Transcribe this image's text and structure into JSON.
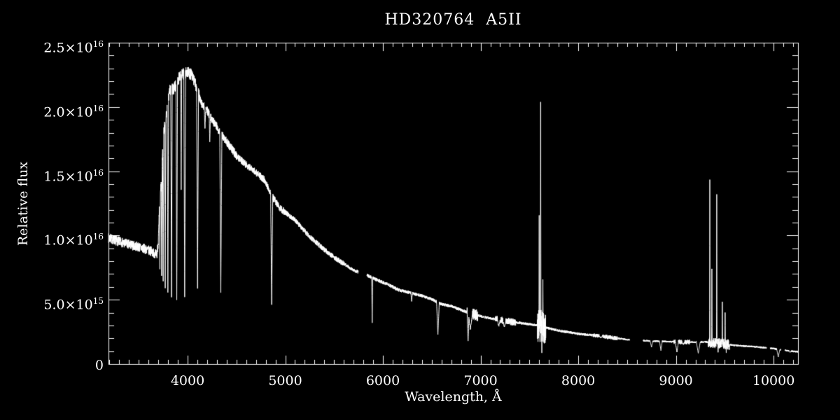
{
  "chart_data": {
    "type": "line",
    "title": "HD320764  A5II",
    "xlabel": "Wavelength, Å",
    "ylabel": "Relative flux",
    "xlim": [
      3190,
      10250
    ],
    "ylim_e15": [
      0,
      25
    ],
    "grid": "off",
    "legend": "none",
    "colors": {
      "background": "#000000",
      "foreground": "#ffffff",
      "line": "#ffffff"
    },
    "x_axis": {
      "major_values": [
        4000,
        5000,
        6000,
        7000,
        8000,
        9000,
        10000
      ],
      "labels": [
        "4000",
        "5000",
        "6000",
        "7000",
        "8000",
        "9000",
        "10000"
      ],
      "minor_step": 100
    },
    "y_axis": {
      "major_values_e15": [
        0,
        5,
        10,
        15,
        20,
        25
      ],
      "labels": [
        {
          "text": "0",
          "sup": ""
        },
        {
          "text": "5.0×10",
          "sup": "15"
        },
        {
          "text": "1.0×10",
          "sup": "16"
        },
        {
          "text": "1.5×10",
          "sup": "16"
        },
        {
          "text": "2.0×10",
          "sup": "16"
        },
        {
          "text": "2.5×10",
          "sup": "16"
        }
      ],
      "minor_step_e15": 1
    },
    "flux_unit": "1e15 relative flux units",
    "continuum_e15": [
      [
        3190,
        9.8
      ],
      [
        3350,
        9.4
      ],
      [
        3500,
        9.1
      ],
      [
        3620,
        8.8
      ],
      [
        3685,
        8.5
      ],
      [
        3700,
        9.5
      ],
      [
        3713,
        12.3
      ],
      [
        3730,
        14.0
      ],
      [
        3750,
        17.8
      ],
      [
        3780,
        19.2
      ],
      [
        3815,
        21.3
      ],
      [
        3860,
        21.4
      ],
      [
        3925,
        22.5
      ],
      [
        4000,
        22.7
      ],
      [
        4040,
        22.5
      ],
      [
        4090,
        21.6
      ],
      [
        4140,
        20.3
      ],
      [
        4200,
        19.7
      ],
      [
        4260,
        18.9
      ],
      [
        4320,
        18.2
      ],
      [
        4400,
        17.3
      ],
      [
        4500,
        16.2
      ],
      [
        4600,
        15.5
      ],
      [
        4700,
        14.9
      ],
      [
        4790,
        14.3
      ],
      [
        4870,
        13.0
      ],
      [
        4950,
        12.1
      ],
      [
        5050,
        11.5
      ],
      [
        5100,
        11.2
      ],
      [
        5250,
        9.9
      ],
      [
        5400,
        8.9
      ],
      [
        5500,
        8.3
      ],
      [
        5600,
        7.8
      ],
      [
        5700,
        7.3
      ],
      [
        5840,
        6.9
      ],
      [
        5950,
        6.5
      ],
      [
        6050,
        6.2
      ],
      [
        6150,
        5.8
      ],
      [
        6300,
        5.5
      ],
      [
        6400,
        5.3
      ],
      [
        6500,
        5.05
      ],
      [
        6600,
        4.65
      ],
      [
        6700,
        4.5
      ],
      [
        6800,
        4.2
      ],
      [
        6960,
        3.8
      ],
      [
        7100,
        3.55
      ],
      [
        7300,
        3.3
      ],
      [
        7500,
        3.1
      ],
      [
        7590,
        3.0
      ],
      [
        7660,
        2.85
      ],
      [
        7800,
        2.6
      ],
      [
        8000,
        2.35
      ],
      [
        8200,
        2.2
      ],
      [
        8400,
        2.0
      ],
      [
        8500,
        1.9
      ],
      [
        8700,
        1.8
      ],
      [
        8900,
        1.75
      ],
      [
        9100,
        1.7
      ],
      [
        9300,
        1.72
      ],
      [
        9450,
        1.6
      ],
      [
        9600,
        1.45
      ],
      [
        9800,
        1.35
      ],
      [
        10000,
        1.2
      ],
      [
        10120,
        1.05
      ],
      [
        10250,
        0.95
      ]
    ],
    "absorption_lines_center_halfwidth_bottom_e15": [
      [
        3716,
        5,
        7.4
      ],
      [
        3734,
        5,
        6.8
      ],
      [
        3750,
        6,
        6.5
      ],
      [
        3771,
        6,
        6.0
      ],
      [
        3798,
        7,
        5.5
      ],
      [
        3835,
        8,
        5.2
      ],
      [
        3889,
        8,
        4.9
      ],
      [
        3934,
        6,
        13.5
      ],
      [
        3970,
        9,
        5.2
      ],
      [
        4102,
        10,
        5.9
      ],
      [
        4178,
        8,
        18.3
      ],
      [
        4227,
        6,
        17.2
      ],
      [
        4340,
        11,
        5.6
      ],
      [
        4861,
        11,
        4.6
      ],
      [
        5890,
        5,
        3.2
      ],
      [
        6294,
        8,
        4.9
      ],
      [
        6563,
        14,
        2.3
      ],
      [
        6872,
        10,
        1.7
      ],
      [
        6895,
        22,
        2.7
      ],
      [
        7186,
        14,
        2.9
      ],
      [
        7243,
        16,
        2.9
      ],
      [
        7627,
        2,
        0.9
      ],
      [
        7652,
        2,
        1.4
      ],
      [
        8230,
        18,
        2.05
      ],
      [
        8750,
        14,
        1.3
      ],
      [
        8846,
        14,
        1.05
      ],
      [
        9010,
        16,
        0.9
      ],
      [
        9075,
        12,
        1.5
      ],
      [
        9229,
        20,
        0.83
      ],
      [
        9432,
        2,
        0.9
      ],
      [
        9515,
        2,
        0.8
      ],
      [
        9548,
        2,
        1.1
      ],
      [
        10048,
        16,
        0.55
      ],
      [
        10170,
        10,
        0.9
      ]
    ],
    "emission_spikes_center_halfwidth_top_e15": [
      [
        7600,
        2.5,
        11.5
      ],
      [
        7615,
        3,
        20.3
      ],
      [
        7638,
        2.5,
        6.3
      ],
      [
        9347,
        2.5,
        14.3
      ],
      [
        9368,
        2.5,
        7.4
      ],
      [
        9418,
        2.5,
        13.3
      ],
      [
        9475,
        2.5,
        4.8
      ],
      [
        9504,
        2.5,
        4.0
      ]
    ],
    "noise_regions_from_to_amp_e15": [
      [
        3190,
        3700,
        0.38
      ],
      [
        3700,
        4120,
        0.45
      ],
      [
        4120,
        4500,
        0.35
      ],
      [
        4500,
        5000,
        0.28
      ],
      [
        5000,
        5600,
        0.2
      ],
      [
        5600,
        6200,
        0.14
      ],
      [
        6200,
        6860,
        0.12
      ],
      [
        6860,
        6970,
        0.45
      ],
      [
        6970,
        7150,
        0.1
      ],
      [
        7150,
        7360,
        0.28
      ],
      [
        7360,
        7580,
        0.1
      ],
      [
        7580,
        7668,
        1.3
      ],
      [
        7668,
        8150,
        0.1
      ],
      [
        8150,
        8400,
        0.16
      ],
      [
        8400,
        8980,
        0.07
      ],
      [
        8980,
        9140,
        0.18
      ],
      [
        9140,
        9330,
        0.07
      ],
      [
        9330,
        9540,
        0.4
      ],
      [
        9540,
        10250,
        0.07
      ]
    ],
    "gaps": [
      [
        5750,
        5835
      ],
      [
        8525,
        8665
      ],
      [
        9930,
        9965
      ],
      [
        10075,
        10115
      ]
    ]
  }
}
